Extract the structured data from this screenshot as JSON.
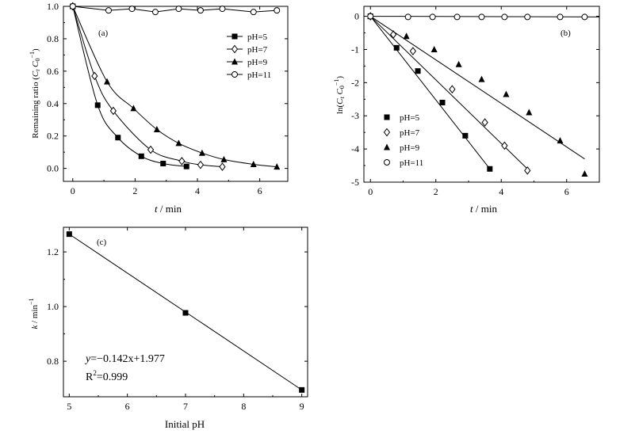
{
  "chart_data": [
    {
      "type": "line",
      "panel_label": "(a)",
      "xlabel_var": "t",
      "xlabel_unit": "min",
      "ylabel_text": "Remaining ratio (C",
      "ylabel_full": "Remaining ratio (C_t C_0^-1)",
      "xlim": [
        -0.3,
        6.9
      ],
      "ylim": [
        -0.08,
        1.0
      ],
      "xticks": [
        0,
        2,
        4,
        6
      ],
      "yticks": [
        0.0,
        0.2,
        0.4,
        0.6,
        0.8,
        1.0
      ],
      "ytick_labels": [
        "0.0",
        "0.2",
        "0.4",
        "0.6",
        "0.8",
        "1.0"
      ],
      "legend_position": "top-right",
      "series": [
        {
          "name": "pH=5",
          "marker": "square",
          "x": [
            0,
            0.8,
            1.45,
            2.2,
            2.9,
            3.65
          ],
          "y": [
            1.0,
            0.39,
            0.19,
            0.075,
            0.03,
            0.012
          ]
        },
        {
          "name": "pH=7",
          "marker": "diamond-open",
          "x": [
            0,
            0.7,
            1.3,
            2.5,
            3.5,
            4.1,
            4.8
          ],
          "y": [
            1.0,
            0.57,
            0.355,
            0.115,
            0.045,
            0.022,
            0.01
          ]
        },
        {
          "name": "pH=9",
          "marker": "triangle",
          "x": [
            0,
            1.1,
            1.95,
            2.7,
            3.4,
            4.15,
            4.85,
            5.8,
            6.55
          ],
          "y": [
            1.0,
            0.535,
            0.37,
            0.24,
            0.155,
            0.095,
            0.055,
            0.025,
            0.01
          ]
        },
        {
          "name": "pH=11",
          "marker": "circle-open",
          "x": [
            0,
            1.15,
            1.9,
            2.65,
            3.4,
            4.1,
            4.8,
            5.8,
            6.55
          ],
          "y": [
            1.0,
            0.975,
            0.985,
            0.965,
            0.985,
            0.975,
            0.985,
            0.965,
            0.975
          ]
        }
      ]
    },
    {
      "type": "scatter",
      "panel_label": "(b)",
      "xlabel_var": "t",
      "xlabel_unit": "min",
      "ylabel_text": "ln(C",
      "ylabel_full": "ln(C_t C_0^-1)",
      "xlim": [
        -0.2,
        7.0
      ],
      "ylim": [
        -5.0,
        0.3
      ],
      "xticks": [
        0,
        2,
        4,
        6
      ],
      "yticks": [
        0,
        -1,
        -2,
        -3,
        -4,
        -5
      ],
      "ytick_labels": [
        "0",
        "-1",
        "-2",
        "-3",
        "-4",
        "-5"
      ],
      "legend_position": "bottom-left",
      "series": [
        {
          "name": "pH=5",
          "marker": "square",
          "x": [
            0,
            0.8,
            1.45,
            2.2,
            2.9,
            3.65
          ],
          "y": [
            0,
            -0.95,
            -1.65,
            -2.6,
            -3.6,
            -4.6
          ],
          "fit": [
            [
              0,
              0
            ],
            [
              3.65,
              -4.6
            ]
          ]
        },
        {
          "name": "pH=7",
          "marker": "diamond-open",
          "x": [
            0,
            0.7,
            1.3,
            2.5,
            3.5,
            4.1,
            4.8
          ],
          "y": [
            0,
            -0.55,
            -1.05,
            -2.2,
            -3.2,
            -3.9,
            -4.65
          ],
          "fit": [
            [
              0,
              0
            ],
            [
              4.8,
              -4.6
            ]
          ]
        },
        {
          "name": "pH=9",
          "marker": "triangle",
          "x": [
            0,
            1.1,
            1.95,
            2.7,
            3.4,
            4.15,
            4.85,
            5.8,
            6.55
          ],
          "y": [
            0,
            -0.6,
            -1.0,
            -1.45,
            -1.9,
            -2.35,
            -2.9,
            -3.75,
            -4.75
          ],
          "fit": [
            [
              0,
              0
            ],
            [
              6.55,
              -4.3
            ]
          ]
        },
        {
          "name": "pH=11",
          "marker": "circle-open",
          "x": [
            0,
            1.15,
            1.9,
            2.65,
            3.4,
            4.1,
            4.8,
            5.8,
            6.55
          ],
          "y": [
            0,
            -0.02,
            -0.02,
            -0.02,
            -0.02,
            -0.02,
            -0.02,
            -0.02,
            -0.02
          ],
          "fit": [
            [
              0,
              0
            ],
            [
              7.0,
              -0.02
            ]
          ]
        }
      ]
    },
    {
      "type": "line",
      "panel_label": "(c)",
      "xlabel": "Initial pH",
      "ylabel_text": "k / min",
      "xlim": [
        4.9,
        9.1
      ],
      "ylim": [
        0.67,
        1.29
      ],
      "xticks": [
        5,
        6,
        7,
        8,
        9
      ],
      "yticks": [
        0.8,
        1.0,
        1.2
      ],
      "ytick_labels": [
        "0.8",
        "1.0",
        "1.2"
      ],
      "series": [
        {
          "name": "k",
          "marker": "square",
          "x": [
            5,
            7,
            9
          ],
          "y": [
            1.265,
            0.977,
            0.695
          ],
          "fit": [
            [
              5,
              1.265
            ],
            [
              9,
              0.695
            ]
          ]
        }
      ],
      "equation_text": "=−0.142x+1.977",
      "equation_prefix": "y",
      "r2_prefix": "R",
      "r2_value": "=0.999"
    }
  ]
}
